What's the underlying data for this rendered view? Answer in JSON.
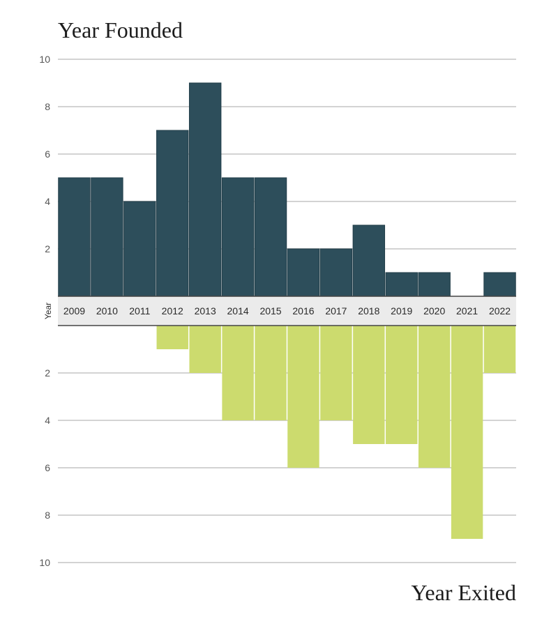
{
  "chart_data": {
    "type": "bar",
    "categories": [
      "2009",
      "2010",
      "2011",
      "2012",
      "2013",
      "2014",
      "2015",
      "2016",
      "2017",
      "2018",
      "2019",
      "2020",
      "2021",
      "2022"
    ],
    "axis_label": "Year",
    "top": {
      "title": "Year Founded",
      "values": [
        5,
        5,
        4,
        7,
        9,
        5,
        5,
        2,
        2,
        3,
        1,
        1,
        0,
        1
      ],
      "ylim": [
        0,
        10
      ],
      "ticks": [
        "2",
        "4",
        "6",
        "8",
        "10"
      ],
      "color": "#2d4e5b"
    },
    "bottom": {
      "title": "Year Exited",
      "values": [
        0,
        0,
        0,
        1,
        2,
        4,
        4,
        6,
        4,
        5,
        5,
        6,
        9,
        2
      ],
      "ylim": [
        0,
        10
      ],
      "ticks": [
        "2",
        "4",
        "6",
        "8",
        "10"
      ],
      "color": "#ccdb6e"
    },
    "grid": true
  }
}
